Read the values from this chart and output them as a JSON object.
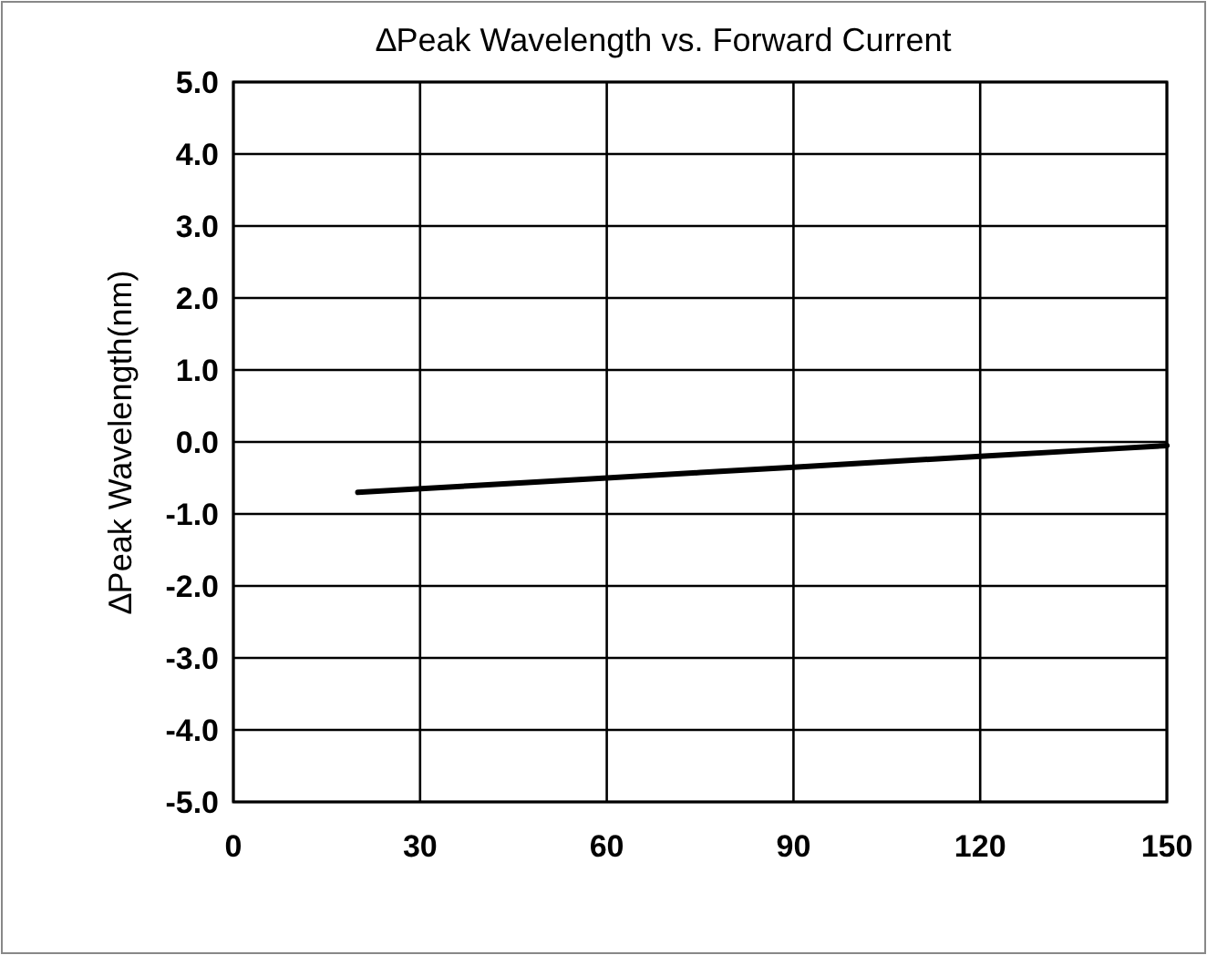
{
  "chart_data": {
    "type": "line",
    "title": "∆Peak Wavelength vs. Forward Current",
    "ylabel": "∆Peak Wavelength(nm)",
    "x": [
      20,
      60,
      90,
      120,
      150
    ],
    "series": [
      {
        "color": "#000000",
        "values": [
          -0.7,
          -0.5,
          -0.35,
          -0.2,
          -0.05
        ]
      }
    ],
    "xlim": [
      0,
      150
    ],
    "xticks": [
      0,
      30,
      60,
      90,
      120,
      150
    ],
    "ylim": [
      -5,
      5
    ],
    "yticks": [
      {
        "value": -5,
        "label": "-5.0"
      },
      {
        "value": -4,
        "label": "-4.0"
      },
      {
        "value": -3,
        "label": "-3.0"
      },
      {
        "value": -2,
        "label": "-2.0"
      },
      {
        "value": -1,
        "label": "-1.0"
      },
      {
        "value": 0,
        "label": "0.0"
      },
      {
        "value": 1,
        "label": "1.0"
      },
      {
        "value": 2,
        "label": "2.0"
      },
      {
        "value": 3,
        "label": "3.0"
      },
      {
        "value": 4,
        "label": "4.0"
      },
      {
        "value": 5,
        "label": "5.0"
      }
    ],
    "grid": true,
    "marker": "none",
    "line_style": "solid"
  }
}
